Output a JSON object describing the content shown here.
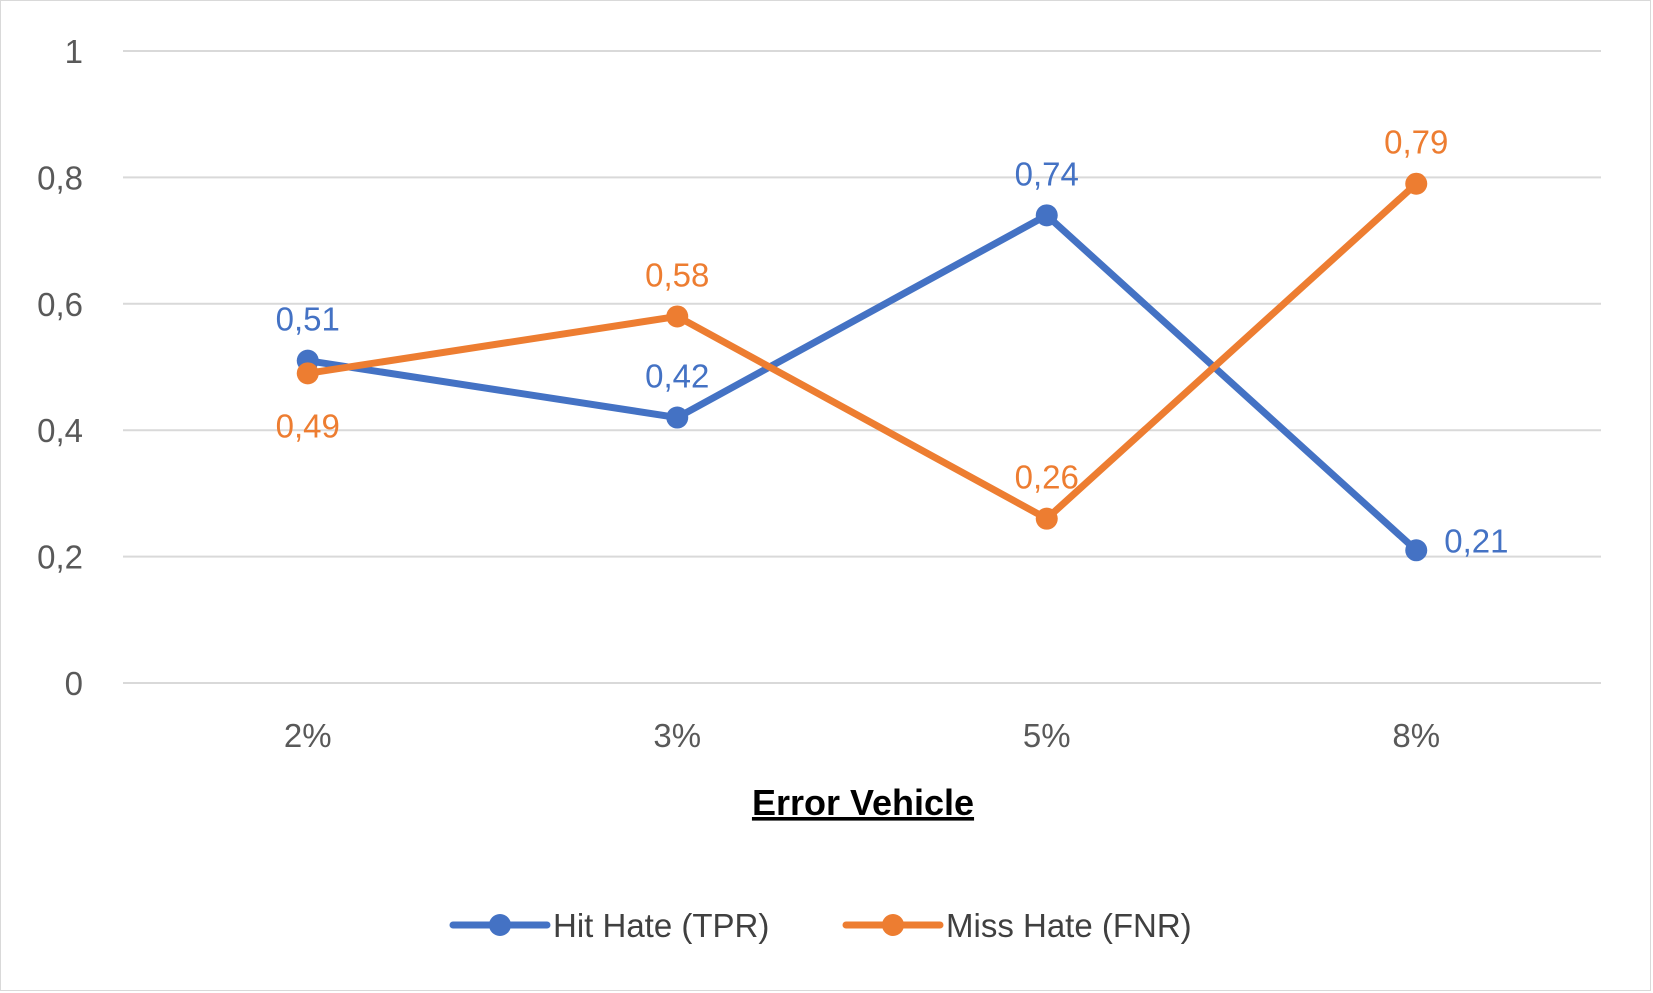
{
  "chart_data": {
    "type": "line",
    "title": "",
    "xlabel": "Error Vehicle",
    "ylabel": "",
    "categories": [
      "2%",
      "3%",
      "5%",
      "8%"
    ],
    "ylim": [
      0,
      1
    ],
    "yticks": [
      0,
      0.2,
      0.4,
      0.6,
      0.8,
      1
    ],
    "ytick_labels": [
      "0",
      "0,2",
      "0,4",
      "0,6",
      "0,8",
      "1"
    ],
    "grid": true,
    "legend": "bottom",
    "series": [
      {
        "name": "Hit Hate (TPR)",
        "color": "#4472c4",
        "values": [
          0.51,
          0.42,
          0.74,
          0.21
        ],
        "labels": [
          "0,51",
          "0,42",
          "0,74",
          "0,21"
        ],
        "label_positions": [
          "above",
          "above",
          "above",
          "right"
        ]
      },
      {
        "name": "Miss Hate (FNR)",
        "color": "#ed7d31",
        "values": [
          0.49,
          0.58,
          0.26,
          0.79
        ],
        "labels": [
          "0,49",
          "0,58",
          "0,26",
          "0,79"
        ],
        "label_positions": [
          "below",
          "above",
          "above",
          "above"
        ]
      }
    ]
  }
}
